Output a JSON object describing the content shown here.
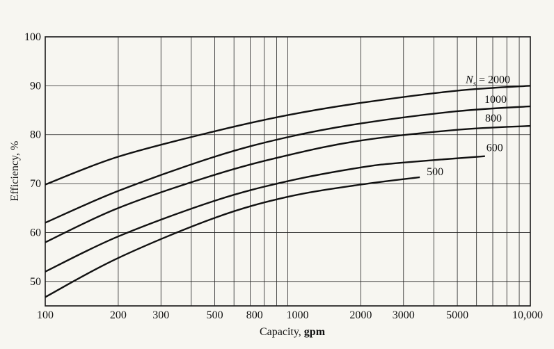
{
  "chart_data": {
    "type": "line",
    "title": "",
    "xlabel_prefix": "Capacity, ",
    "xlabel_unit": "gpm",
    "ylabel": "Efficiency, %",
    "x_scale": "log",
    "xlim": [
      100,
      10000
    ],
    "ylim": [
      45,
      100
    ],
    "x_ticks": [
      {
        "value": 100,
        "label": "100"
      },
      {
        "value": 200,
        "label": "200"
      },
      {
        "value": 300,
        "label": "300"
      },
      {
        "value": 500,
        "label": "500"
      },
      {
        "value": 800,
        "label": "800"
      },
      {
        "value": 1000,
        "label": "1000"
      },
      {
        "value": 2000,
        "label": "2000"
      },
      {
        "value": 3000,
        "label": "3000"
      },
      {
        "value": 5000,
        "label": "5000"
      },
      {
        "value": 10000,
        "label": "10,000"
      }
    ],
    "x_gridlines": [
      100,
      200,
      300,
      400,
      500,
      600,
      700,
      800,
      900,
      1000,
      2000,
      3000,
      4000,
      5000,
      6000,
      7000,
      8000,
      9000,
      10000
    ],
    "y_ticks": [
      50,
      60,
      70,
      80,
      90,
      100
    ],
    "series": [
      {
        "name": "2000",
        "label": "2000",
        "label_prefix": "N",
        "label_sub": "s",
        "label_eq": " = ",
        "x": [
          100,
          200,
          500,
          1000,
          2000,
          5000,
          10000
        ],
        "y": [
          69.8,
          75.5,
          80.7,
          84.0,
          86.5,
          89.0,
          90.0
        ]
      },
      {
        "name": "1000",
        "label": "1000",
        "x": [
          100,
          200,
          500,
          1000,
          2000,
          5000,
          10000
        ],
        "y": [
          62.0,
          68.5,
          75.5,
          79.5,
          82.3,
          84.8,
          85.8
        ]
      },
      {
        "name": "800",
        "label": "800",
        "x": [
          100,
          200,
          500,
          1000,
          2000,
          5000,
          10000
        ],
        "y": [
          58.0,
          65.0,
          71.8,
          75.8,
          78.8,
          81.0,
          81.8
        ]
      },
      {
        "name": "600",
        "label": "600",
        "x": [
          100,
          200,
          500,
          1000,
          2000,
          3000,
          6500
        ],
        "y": [
          52.0,
          59.2,
          66.5,
          70.5,
          73.3,
          74.3,
          75.6
        ]
      },
      {
        "name": "500",
        "label": "500",
        "x": [
          100,
          200,
          500,
          1000,
          2000,
          3500
        ],
        "y": [
          46.8,
          54.8,
          63.0,
          67.3,
          69.8,
          71.3
        ]
      }
    ]
  }
}
